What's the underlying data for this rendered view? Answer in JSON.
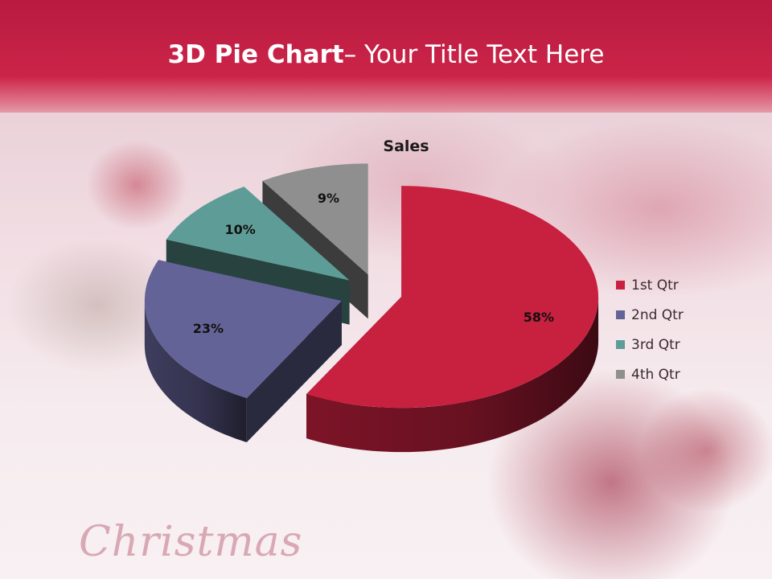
{
  "slide": {
    "title_bold": "3D Pie Chart",
    "title_rest": "– Your Title Text Here",
    "brand": "Christmas"
  },
  "chart_data": {
    "type": "pie",
    "title": "Sales",
    "categories": [
      "1st Qtr",
      "2nd Qtr",
      "3rd Qtr",
      "4th Qtr"
    ],
    "values": [
      58,
      23,
      10,
      9
    ],
    "value_labels": [
      "58%",
      "23%",
      "10%",
      "9%"
    ],
    "colors": [
      "#c8203f",
      "#646397",
      "#5e9d97",
      "#8f8f8f"
    ],
    "legend_position": "right",
    "exploded": true,
    "three_d": true
  }
}
